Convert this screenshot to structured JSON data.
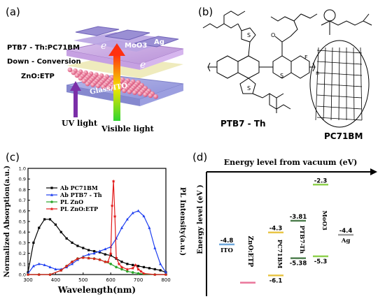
{
  "panel_a": {
    "label": "(a)",
    "layers": [
      "PTB7 - Th:PC71BM",
      "Down - Conversion",
      "ZnO:ETP",
      "Glass/ITO"
    ],
    "moo3": "MoO3",
    "ag": "Ag",
    "electron": "e",
    "uv_light": "UV light",
    "visible_light": "Visible light"
  },
  "panel_b": {
    "label": "(b)",
    "mol1_name": "PTB7 - Th",
    "mol2_name": "PC71BM",
    "atom_S": "S",
    "atom_F": "F",
    "atom_O": "O",
    "subscript_n": "n"
  },
  "panel_c": {
    "label": "(c)",
    "xlabel": "Wavelength(nm)",
    "ylabel_left": "Normalized Absorption(a.u.)",
    "ylabel_right": "PL Intensity(a.u.)",
    "legend": [
      "Ab PC71BM",
      "Ab PTB7 - Th",
      "PL ZnO",
      "PL ZnO:ETP"
    ],
    "x_ticks": [
      "300",
      "400",
      "500",
      "600",
      "700",
      "800"
    ],
    "y_ticks": [
      "0.0",
      "0.1",
      "0.2",
      "0.3",
      "0.4",
      "0.5",
      "0.6",
      "0.7",
      "0.8",
      "0.9",
      "1.0"
    ]
  },
  "chart_data": {
    "type": "line",
    "xlabel": "Wavelength(nm)",
    "ylabel": "Normalized Absorption(a.u.)",
    "xlim": [
      300,
      800
    ],
    "ylim": [
      0.0,
      1.0
    ],
    "series": [
      {
        "name": "Ab PC71BM",
        "color": "#000000",
        "marker": "square",
        "x": [
          300,
          320,
          340,
          360,
          380,
          400,
          420,
          440,
          460,
          480,
          500,
          520,
          540,
          560,
          580,
          600,
          620,
          640,
          660,
          680,
          700,
          720,
          740,
          760,
          780,
          800
        ],
        "y": [
          0.02,
          0.3,
          0.44,
          0.52,
          0.52,
          0.47,
          0.4,
          0.34,
          0.3,
          0.27,
          0.25,
          0.23,
          0.22,
          0.21,
          0.19,
          0.18,
          0.15,
          0.12,
          0.1,
          0.09,
          0.08,
          0.07,
          0.06,
          0.05,
          0.04,
          0.02
        ]
      },
      {
        "name": "Ab PTB7 - Th",
        "color": "#1f3ff0",
        "marker": "triangle",
        "x": [
          300,
          320,
          340,
          360,
          380,
          400,
          420,
          440,
          460,
          480,
          500,
          520,
          540,
          560,
          580,
          600,
          620,
          640,
          660,
          680,
          700,
          720,
          740,
          760,
          780,
          800
        ],
        "y": [
          0.01,
          0.08,
          0.1,
          0.09,
          0.07,
          0.05,
          0.05,
          0.07,
          0.1,
          0.14,
          0.17,
          0.19,
          0.2,
          0.22,
          0.24,
          0.26,
          0.34,
          0.44,
          0.52,
          0.58,
          0.6,
          0.55,
          0.44,
          0.25,
          0.1,
          0.02
        ]
      },
      {
        "name": "PL ZnO",
        "color": "#2aa52a",
        "marker": "circle",
        "x": [
          300,
          340,
          380,
          420,
          440,
          460,
          480,
          500,
          520,
          540,
          560,
          580,
          600,
          620,
          640,
          660,
          680,
          700,
          720,
          760,
          800
        ],
        "y": [
          0.0,
          0.0,
          0.0,
          0.04,
          0.08,
          0.12,
          0.15,
          0.16,
          0.155,
          0.15,
          0.14,
          0.12,
          0.1,
          0.07,
          0.05,
          0.03,
          0.02,
          0.01,
          0.005,
          0.0,
          0.0
        ]
      },
      {
        "name": "PL ZnO:ETP",
        "color": "#e21a1a",
        "marker": "star",
        "x": [
          300,
          340,
          380,
          420,
          440,
          460,
          480,
          500,
          520,
          540,
          560,
          580,
          590,
          600,
          605,
          610,
          615,
          620,
          630,
          640,
          660,
          680,
          690,
          700,
          710,
          720,
          760,
          800
        ],
        "y": [
          0.0,
          0.0,
          0.0,
          0.04,
          0.08,
          0.12,
          0.15,
          0.16,
          0.155,
          0.15,
          0.14,
          0.12,
          0.12,
          0.2,
          0.65,
          0.88,
          0.55,
          0.16,
          0.1,
          0.07,
          0.05,
          0.06,
          0.09,
          0.05,
          0.03,
          0.01,
          0.0,
          0.0
        ]
      }
    ]
  },
  "panel_d": {
    "label": "(d)",
    "title": "Energy level from vacuum (eV)",
    "ylabel": "Energy level (eV )",
    "materials": [
      {
        "name": "ITO",
        "levels": [
          "-4.8"
        ],
        "color": "#6fa8dc"
      },
      {
        "name": "ZnO:ETP",
        "levels": [],
        "color": "#e9749a"
      },
      {
        "name": "PC71BM",
        "levels": [
          "-4.3",
          "-6.1"
        ],
        "color": "#e8c547"
      },
      {
        "name": "PTB7-Th",
        "levels": [
          "-3.81",
          "-5.38"
        ],
        "color": "#4f7f4f"
      },
      {
        "name": "MoO3",
        "levels": [
          "-2.3",
          "-5.3"
        ],
        "color": "#8fd14f"
      },
      {
        "name": "Ag",
        "levels": [
          "-4.4"
        ],
        "color": "#9e9e9e"
      }
    ]
  }
}
